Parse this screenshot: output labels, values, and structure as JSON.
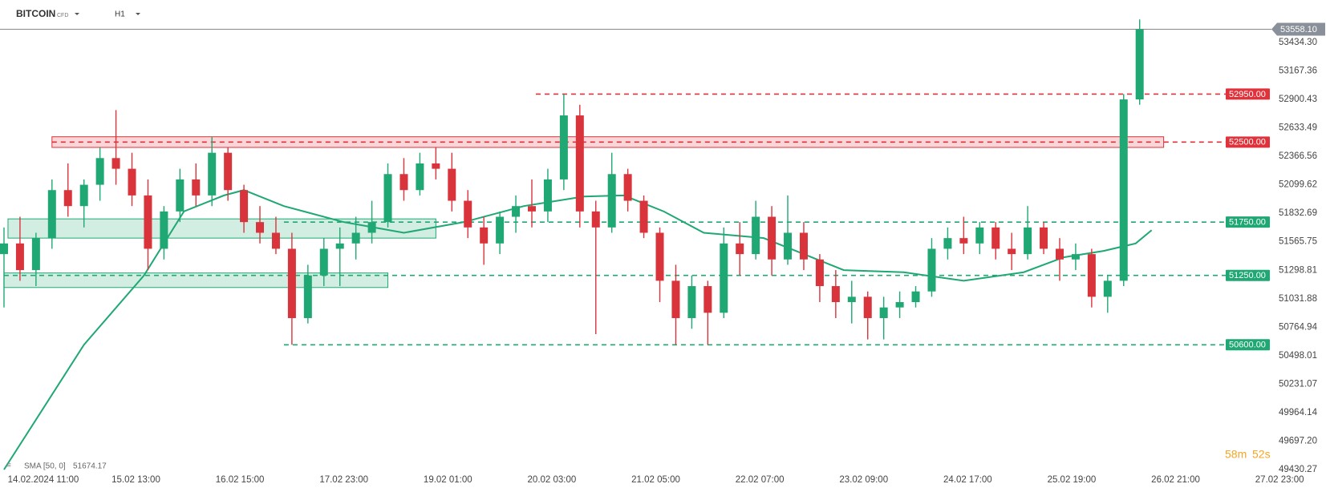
{
  "chart_data": {
    "type": "candlestick",
    "title": "BITCOIN",
    "instrument_type": "CFD",
    "timeframe": "H1",
    "up_color": "#1fa873",
    "down_color": "#d9343c",
    "x": [
      0,
      4,
      8,
      12,
      16,
      20,
      24,
      28,
      32,
      36,
      40,
      44,
      48,
      52,
      56,
      60,
      64,
      68,
      72,
      76,
      80,
      84,
      88,
      92,
      96,
      100,
      104,
      108,
      112,
      116,
      120,
      124,
      128,
      132,
      136,
      140,
      144,
      148,
      152,
      156,
      160,
      164,
      168,
      172,
      176,
      180,
      184,
      188,
      192,
      196,
      200,
      204,
      208,
      212,
      216,
      220,
      224,
      228,
      232,
      236,
      240,
      244,
      248,
      252,
      256,
      260,
      264,
      268,
      272,
      276,
      280,
      284
    ],
    "open": [
      51450,
      51550,
      51300,
      51600,
      52050,
      51900,
      52100,
      52350,
      52250,
      52000,
      51500,
      51850,
      52150,
      52000,
      52400,
      52050,
      51750,
      51650,
      51500,
      50850,
      51250,
      51500,
      51550,
      51650,
      51750,
      52200,
      52050,
      52300,
      52250,
      51950,
      51700,
      51550,
      51800,
      51900,
      51850,
      52150,
      52750,
      51850,
      51700,
      52200,
      51950,
      51650,
      51200,
      50850,
      51150,
      50900,
      51550,
      51450,
      51800,
      51400,
      51650,
      51400,
      51150,
      51000,
      51050,
      50850,
      50950,
      51000,
      51100,
      51500,
      51600,
      51550,
      51700,
      51500,
      51450,
      51700,
      51500,
      51400,
      51450,
      51050,
      51200,
      52900
    ],
    "high": [
      51700,
      51800,
      51650,
      52150,
      52300,
      52150,
      52450,
      52800,
      52400,
      52150,
      51900,
      52250,
      52300,
      52550,
      52450,
      52100,
      51900,
      51800,
      51650,
      51350,
      51600,
      51700,
      51800,
      51950,
      52300,
      52350,
      52400,
      52450,
      52400,
      52050,
      51800,
      51850,
      52000,
      52150,
      52250,
      52950,
      52850,
      51950,
      52400,
      52250,
      52000,
      51700,
      51350,
      51250,
      51200,
      51700,
      51750,
      51950,
      51900,
      52000,
      51750,
      51450,
      51300,
      51200,
      51100,
      51050,
      51100,
      51150,
      51600,
      51700,
      51800,
      51750,
      51750,
      51650,
      51900,
      51750,
      51600,
      51550,
      51500,
      51250,
      52950,
      53650
    ],
    "low": [
      50950,
      51200,
      51150,
      51500,
      51800,
      51700,
      51950,
      52100,
      51900,
      51300,
      51400,
      51750,
      51900,
      51900,
      51950,
      51650,
      51550,
      51450,
      50600,
      50800,
      51150,
      51150,
      51400,
      51550,
      51700,
      51950,
      52000,
      52150,
      51850,
      51600,
      51350,
      51450,
      51650,
      51700,
      51750,
      52050,
      51700,
      50700,
      51650,
      51850,
      51600,
      51000,
      50600,
      50750,
      50600,
      50850,
      51250,
      51400,
      51250,
      51350,
      51300,
      51000,
      50850,
      50800,
      50650,
      50650,
      50850,
      50950,
      51050,
      51400,
      51450,
      51450,
      51400,
      51300,
      51400,
      51450,
      51200,
      51300,
      50950,
      50900,
      51150,
      52850
    ],
    "close": [
      51550,
      51300,
      51600,
      52050,
      51900,
      52100,
      52350,
      52250,
      52000,
      51500,
      51850,
      52150,
      52000,
      52400,
      52050,
      51750,
      51650,
      51500,
      50850,
      51250,
      51500,
      51550,
      51650,
      51750,
      52200,
      52050,
      52300,
      52250,
      51950,
      51700,
      51550,
      51800,
      51900,
      51850,
      52150,
      52750,
      51850,
      51700,
      52200,
      51950,
      51650,
      51200,
      50850,
      51150,
      50900,
      51550,
      51450,
      51800,
      51400,
      51650,
      51400,
      51150,
      51000,
      51050,
      50850,
      50950,
      51000,
      51100,
      51500,
      51600,
      51550,
      51700,
      51500,
      51450,
      51700,
      51500,
      51400,
      51450,
      51050,
      51200,
      52900,
      53558.1
    ],
    "sma": {
      "name": "SMA [50, 0]",
      "last_value": 51674.17,
      "color": "#1fa873",
      "x": [
        0,
        20,
        35,
        45,
        55,
        60,
        70,
        85,
        100,
        115,
        130,
        145,
        155,
        165,
        175,
        190,
        200,
        210,
        225,
        240,
        255,
        265,
        275,
        283,
        287
      ],
      "values": [
        49430,
        50600,
        51250,
        51850,
        52000,
        52050,
        51900,
        51750,
        51650,
        51750,
        51900,
        51990,
        52000,
        51850,
        51650,
        51600,
        51450,
        51300,
        51280,
        51200,
        51280,
        51420,
        51480,
        51550,
        51674.17
      ]
    },
    "zones": [
      {
        "low": 52450,
        "high": 52550,
        "start": 12,
        "end": 290,
        "color": "#e0323a"
      },
      {
        "low": 51600,
        "high": 51780,
        "start": 1,
        "end": 108,
        "color": "#1fa873"
      },
      {
        "low": 51137,
        "high": 51273,
        "start": 0,
        "end": 96,
        "color": "#1fa873"
      }
    ],
    "levels": [
      {
        "value": 52950,
        "label": "52950.00",
        "start": 133,
        "color": "#e0323a"
      },
      {
        "value": 52500,
        "label": "52500.00",
        "start": 12,
        "color": "#e0323a"
      },
      {
        "value": 51750,
        "label": "51750.00",
        "start": 70,
        "color": "#1fa873"
      },
      {
        "value": 51250,
        "label": "51250.00",
        "start": 0,
        "color": "#1fa873"
      },
      {
        "value": 50600,
        "label": "50600.00",
        "start": 70,
        "color": "#1fa873"
      }
    ],
    "current_price": {
      "value": 53558.1,
      "label": "53558.10"
    },
    "timer": {
      "minutes": "58m",
      "seconds": "52s"
    },
    "xlim": [
      -1,
      330
    ],
    "xticks": [
      {
        "value": 7,
        "label": "14.02.2024  11:00"
      },
      {
        "value": 33,
        "label": "15.02  13:00"
      },
      {
        "value": 59,
        "label": "16.02  15:00"
      },
      {
        "value": 85,
        "label": "17.02  23:00"
      },
      {
        "value": 111,
        "label": "19.02  01:00"
      },
      {
        "value": 137,
        "label": "20.02  03:00"
      },
      {
        "value": 163,
        "label": "21.02  05:00"
      },
      {
        "value": 189,
        "label": "22.02  07:00"
      },
      {
        "value": 215,
        "label": "23.02  09:00"
      },
      {
        "value": 241,
        "label": "24.02  17:00"
      },
      {
        "value": 267,
        "label": "25.02  19:00"
      },
      {
        "value": 293,
        "label": "26.02  21:00"
      },
      {
        "value": 319,
        "label": "27.02  23:00"
      }
    ],
    "ylim": [
      49325,
      53832
    ],
    "yticks": [
      {
        "value": 53434.3,
        "label": "53434.30"
      },
      53167.36,
      52900.43,
      52633.49,
      52366.56,
      52099.62,
      51832.69,
      51565.75,
      51298.81,
      51031.88,
      50764.94,
      50498.01,
      50231.07,
      49964.14,
      {
        "value": 49697.2,
        "label": "49697.20"
      },
      49430.27
    ]
  }
}
